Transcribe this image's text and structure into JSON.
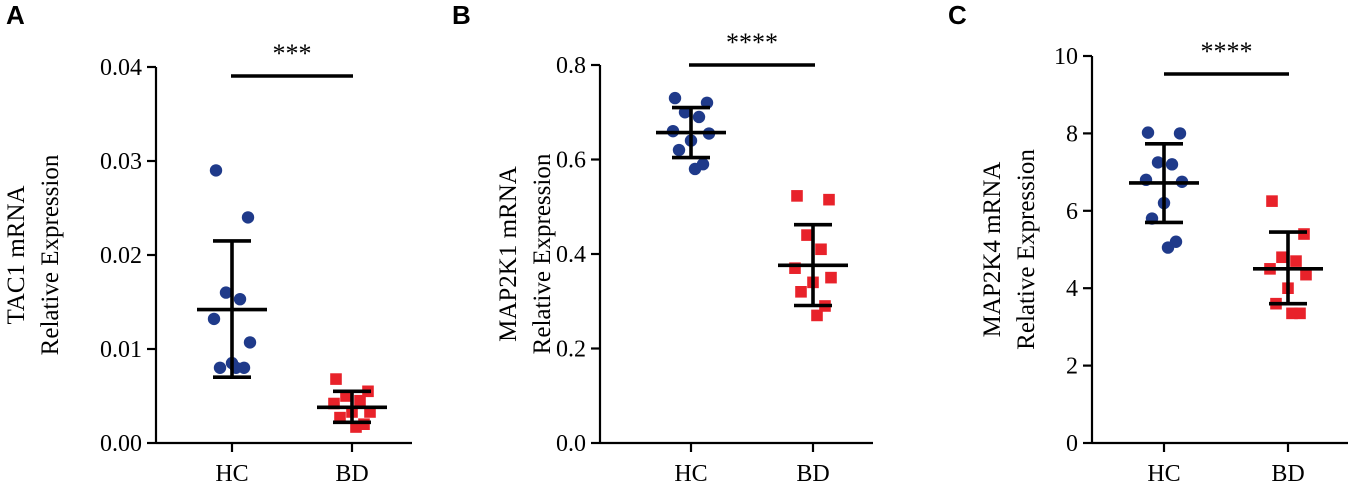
{
  "colors": {
    "HC": "#1f3a8a",
    "BD": "#e8222a",
    "axis": "#000000"
  },
  "chart_data": [
    {
      "type": "scatter",
      "panel": "A",
      "categories": [
        "HC",
        "BD"
      ],
      "ylabel": [
        "TAC1 mRNA",
        "Relative Expression"
      ],
      "ylim": [
        0,
        0.04
      ],
      "yticks": [
        0,
        0.01,
        0.02,
        0.03,
        0.04
      ],
      "ytick_labels": [
        "0.00",
        "0.01",
        "0.02",
        "0.03",
        "0.04"
      ],
      "significance": "***",
      "series": [
        {
          "name": "HC",
          "marker": "circle",
          "mean": 0.0142,
          "sd_low": 0.007,
          "sd_high": 0.0215,
          "values": [
            0.029,
            0.024,
            0.016,
            0.0153,
            0.0132,
            0.0107,
            0.0085,
            0.008,
            0.008,
            0.008
          ]
        },
        {
          "name": "BD",
          "marker": "square",
          "mean": 0.0038,
          "sd_low": 0.0022,
          "sd_high": 0.0055,
          "values": [
            0.0068,
            0.0055,
            0.005,
            0.0045,
            0.0042,
            0.0033,
            0.0033,
            0.0027,
            0.002,
            0.0017
          ]
        }
      ]
    },
    {
      "type": "scatter",
      "panel": "B",
      "categories": [
        "HC",
        "BD"
      ],
      "ylabel": [
        "MAP2K1 mRNA",
        "Relative Expression"
      ],
      "ylim": [
        0,
        0.8
      ],
      "yticks": [
        0,
        0.2,
        0.4,
        0.6,
        0.8
      ],
      "ytick_labels": [
        "0.0",
        "0.2",
        "0.4",
        "0.6",
        "0.8"
      ],
      "significance": "****",
      "series": [
        {
          "name": "HC",
          "marker": "circle",
          "mean": 0.657,
          "sd_low": 0.604,
          "sd_high": 0.71,
          "values": [
            0.73,
            0.72,
            0.7,
            0.69,
            0.66,
            0.655,
            0.64,
            0.62,
            0.59,
            0.58
          ]
        },
        {
          "name": "BD",
          "marker": "square",
          "mean": 0.376,
          "sd_low": 0.291,
          "sd_high": 0.462,
          "values": [
            0.523,
            0.515,
            0.44,
            0.41,
            0.37,
            0.35,
            0.34,
            0.32,
            0.29,
            0.27
          ]
        }
      ]
    },
    {
      "type": "scatter",
      "panel": "C",
      "categories": [
        "HC",
        "BD"
      ],
      "ylabel": [
        "MAP2K4 mRNA",
        "Relative Expression"
      ],
      "ylim": [
        0,
        10
      ],
      "yticks": [
        0,
        2,
        4,
        6,
        8,
        10
      ],
      "ytick_labels": [
        "0",
        "2",
        "4",
        "6",
        "8",
        "10"
      ],
      "significance": "****",
      "series": [
        {
          "name": "HC",
          "marker": "circle",
          "mean": 6.72,
          "sd_low": 5.7,
          "sd_high": 7.73,
          "values": [
            8.02,
            8.0,
            7.25,
            7.2,
            6.8,
            6.75,
            6.2,
            5.8,
            5.2,
            5.05
          ]
        },
        {
          "name": "BD",
          "marker": "square",
          "mean": 4.5,
          "sd_low": 3.6,
          "sd_high": 5.45,
          "values": [
            6.25,
            5.4,
            4.8,
            4.7,
            4.5,
            4.35,
            4.0,
            3.6,
            3.35,
            3.35
          ]
        }
      ]
    }
  ]
}
